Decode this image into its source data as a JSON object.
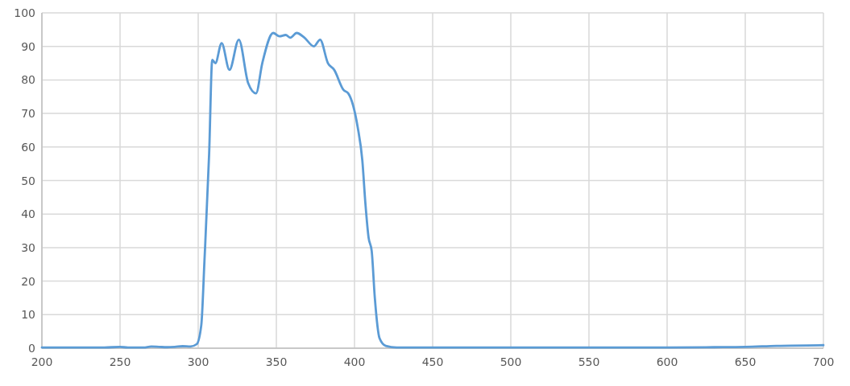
{
  "chart_data": {
    "type": "line",
    "xlim": [
      200,
      700
    ],
    "xticks": [
      200,
      250,
      300,
      350,
      400,
      450,
      500,
      550,
      600,
      650,
      700
    ],
    "ylim": [
      0,
      100
    ],
    "yticks": [
      0,
      10,
      20,
      30,
      40,
      50,
      60,
      70,
      80,
      90,
      100
    ],
    "grid": true,
    "marker": "none",
    "series": [
      {
        "color": "#5b9bd5",
        "x": [
          200,
          220,
          240,
          250,
          255,
          265,
          270,
          275,
          280,
          285,
          290,
          295,
          299,
          302,
          304,
          307,
          309,
          311,
          315,
          320,
          326,
          332,
          337,
          341,
          348,
          352,
          356,
          359,
          363,
          368,
          374,
          378,
          383,
          387,
          393,
          396,
          402,
          405,
          407,
          409,
          411,
          413,
          416,
          420,
          427,
          450,
          500,
          550,
          600,
          630,
          650,
          670,
          700
        ],
        "values": [
          0.2,
          0.2,
          0.2,
          0.4,
          0.2,
          0.2,
          0.5,
          0.4,
          0.3,
          0.4,
          0.6,
          0.5,
          1.2,
          7,
          26,
          58,
          86,
          85,
          91,
          83,
          92,
          79,
          76,
          85,
          94,
          93,
          93.4,
          92.6,
          94,
          92.6,
          90,
          92,
          85,
          83,
          77,
          76,
          66,
          56,
          43,
          33,
          29,
          15,
          3,
          0.7,
          0.2,
          0.2,
          0.2,
          0.2,
          0.2,
          0.3,
          0.4,
          0.7,
          0.9
        ]
      }
    ]
  }
}
